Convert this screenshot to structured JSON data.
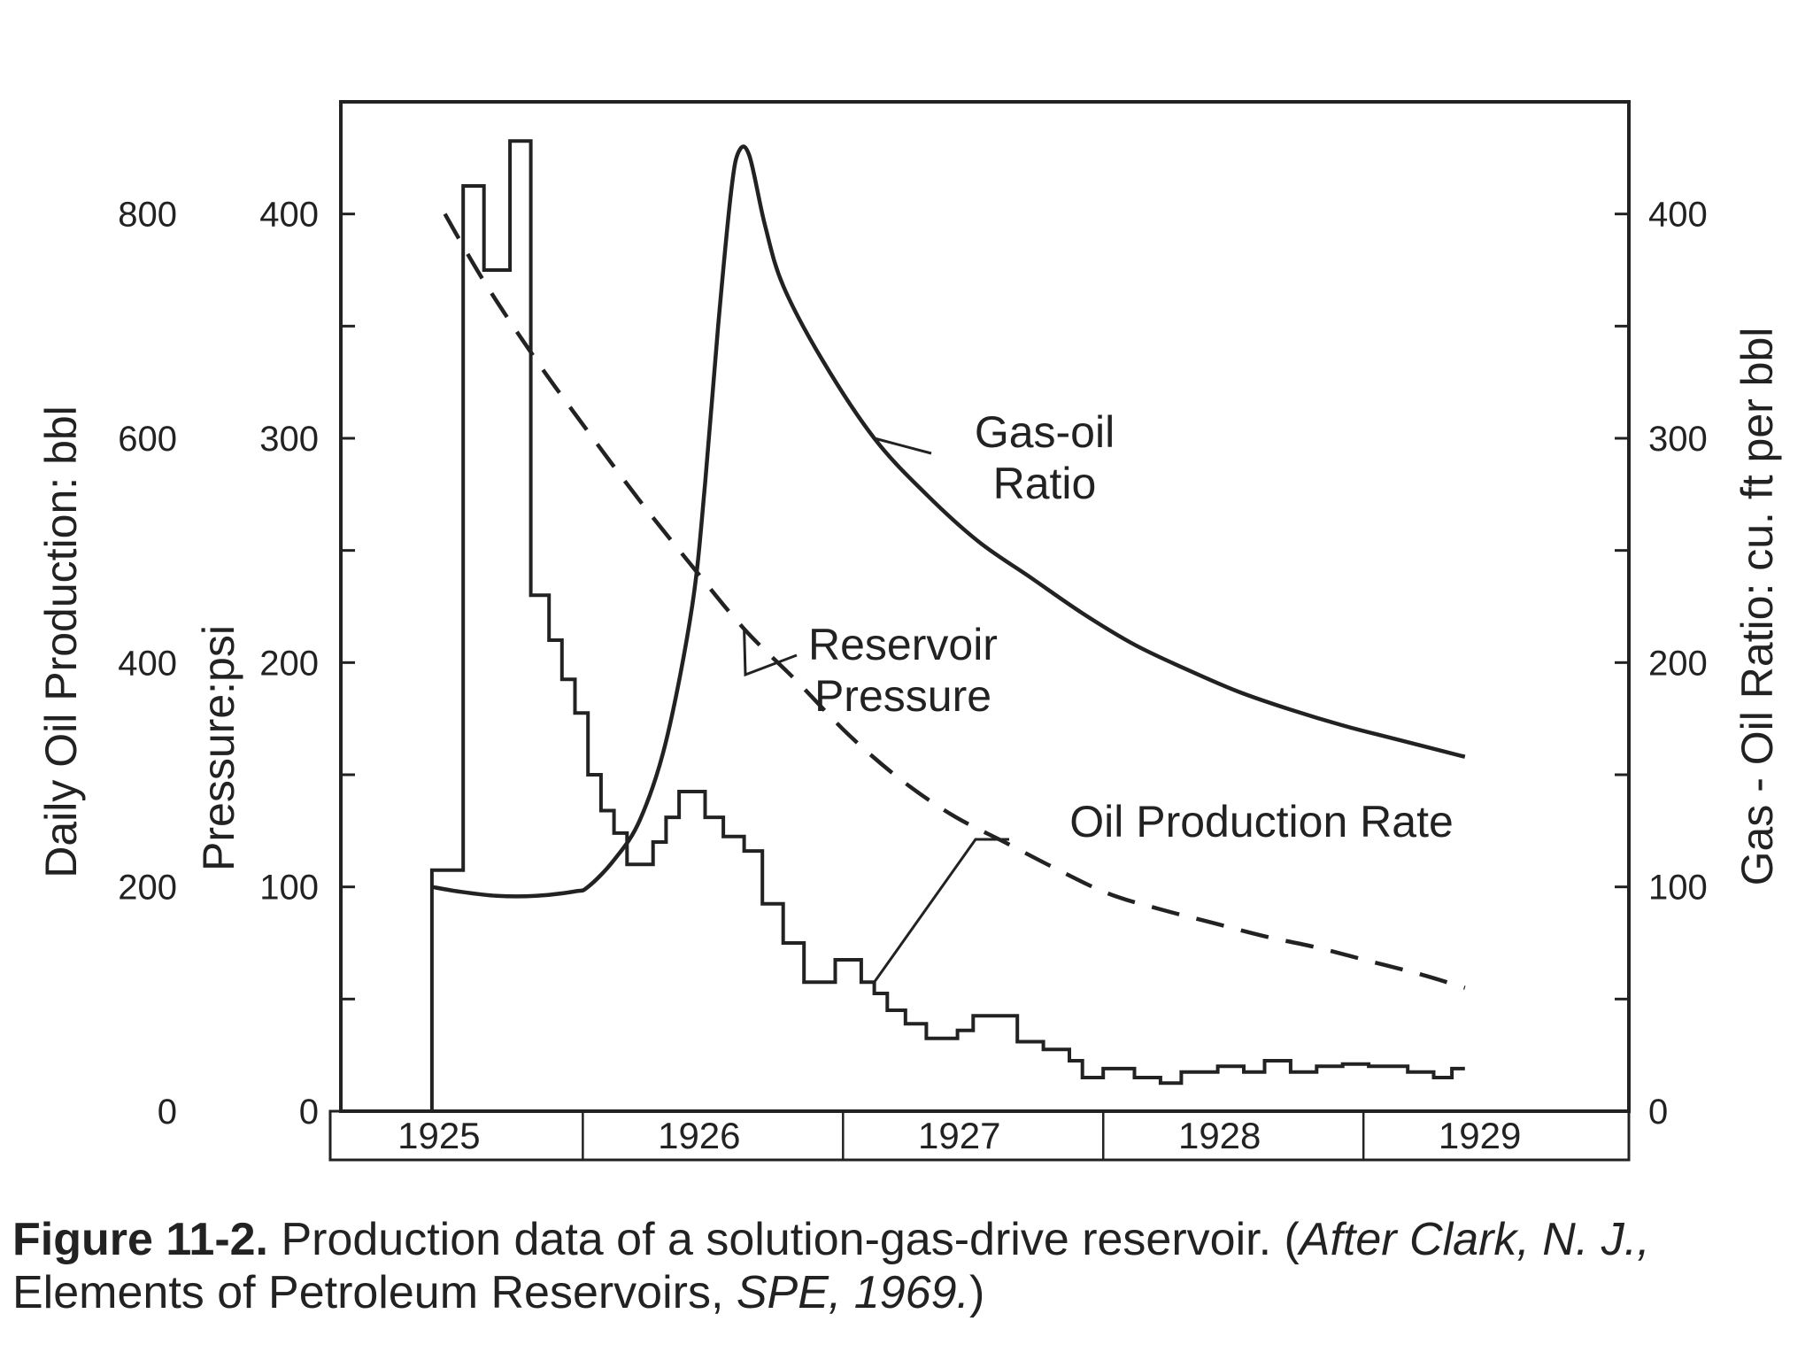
{
  "chart_data": {
    "type": "line",
    "x_unit": "year",
    "xlim": [
      1924.65,
      1929.6
    ],
    "x_tick_labels": [
      "1925",
      "1926",
      "1927",
      "1928",
      "1929"
    ],
    "axes": {
      "daily_oil": {
        "label": "Daily Oil Production: bbl",
        "ylim": [
          0,
          900
        ],
        "ticks": [
          0,
          200,
          400,
          600,
          800
        ],
        "tick_labels": [
          "0",
          "200",
          "400",
          "600",
          "800"
        ]
      },
      "pressure": {
        "label": "Pressure:psi",
        "ylim": [
          0,
          450
        ],
        "ticks": [
          0,
          100,
          200,
          300,
          400
        ],
        "tick_labels": [
          "0",
          "100",
          "200",
          "300",
          "400"
        ]
      },
      "gor": {
        "label": "Gas - Oil Ratio: cu. ft per bbl",
        "ylim": [
          0,
          450
        ],
        "ticks": [
          0,
          100,
          200,
          300,
          400
        ],
        "tick_labels": [
          "0",
          "100",
          "200",
          "300",
          "400"
        ]
      }
    },
    "series": [
      {
        "name": "Oil Production Rate",
        "axis": "daily_oil",
        "style": "step",
        "points": [
          [
            1925.0,
            0
          ],
          [
            1925.0,
            215
          ],
          [
            1925.12,
            215
          ],
          [
            1925.12,
            825
          ],
          [
            1925.2,
            825
          ],
          [
            1925.2,
            750
          ],
          [
            1925.3,
            750
          ],
          [
            1925.3,
            865
          ],
          [
            1925.38,
            865
          ],
          [
            1925.38,
            460
          ],
          [
            1925.45,
            460
          ],
          [
            1925.45,
            420
          ],
          [
            1925.5,
            420
          ],
          [
            1925.5,
            385
          ],
          [
            1925.55,
            385
          ],
          [
            1925.55,
            355
          ],
          [
            1925.6,
            355
          ],
          [
            1925.6,
            300
          ],
          [
            1925.65,
            300
          ],
          [
            1925.65,
            268
          ],
          [
            1925.7,
            268
          ],
          [
            1925.7,
            248
          ],
          [
            1925.75,
            248
          ],
          [
            1925.75,
            220
          ],
          [
            1925.85,
            220
          ],
          [
            1925.85,
            240
          ],
          [
            1925.9,
            240
          ],
          [
            1925.9,
            262
          ],
          [
            1925.95,
            262
          ],
          [
            1925.95,
            285
          ],
          [
            1926.05,
            285
          ],
          [
            1926.05,
            262
          ],
          [
            1926.12,
            262
          ],
          [
            1926.12,
            245
          ],
          [
            1926.2,
            245
          ],
          [
            1926.2,
            232
          ],
          [
            1926.27,
            232
          ],
          [
            1926.27,
            185
          ],
          [
            1926.35,
            185
          ],
          [
            1926.35,
            150
          ],
          [
            1926.43,
            150
          ],
          [
            1926.43,
            115
          ],
          [
            1926.55,
            115
          ],
          [
            1926.55,
            135
          ],
          [
            1926.65,
            135
          ],
          [
            1926.65,
            115
          ],
          [
            1926.7,
            115
          ],
          [
            1926.7,
            105
          ],
          [
            1926.75,
            105
          ],
          [
            1926.75,
            90
          ],
          [
            1926.82,
            90
          ],
          [
            1926.82,
            78
          ],
          [
            1926.9,
            78
          ],
          [
            1926.9,
            65
          ],
          [
            1927.02,
            65
          ],
          [
            1927.02,
            72
          ],
          [
            1927.08,
            72
          ],
          [
            1927.08,
            85
          ],
          [
            1927.25,
            85
          ],
          [
            1927.25,
            62
          ],
          [
            1927.35,
            62
          ],
          [
            1927.35,
            55
          ],
          [
            1927.45,
            55
          ],
          [
            1927.45,
            45
          ],
          [
            1927.5,
            45
          ],
          [
            1927.5,
            30
          ],
          [
            1927.58,
            30
          ],
          [
            1927.58,
            38
          ],
          [
            1927.7,
            38
          ],
          [
            1927.7,
            30
          ],
          [
            1927.8,
            30
          ],
          [
            1927.8,
            25
          ],
          [
            1927.88,
            25
          ],
          [
            1927.88,
            35
          ],
          [
            1928.02,
            35
          ],
          [
            1928.02,
            40
          ],
          [
            1928.12,
            40
          ],
          [
            1928.12,
            35
          ],
          [
            1928.2,
            35
          ],
          [
            1928.2,
            45
          ],
          [
            1928.3,
            45
          ],
          [
            1928.3,
            35
          ],
          [
            1928.4,
            35
          ],
          [
            1928.4,
            40
          ],
          [
            1928.5,
            40
          ],
          [
            1928.5,
            42
          ],
          [
            1928.6,
            42
          ],
          [
            1928.6,
            40
          ],
          [
            1928.75,
            40
          ],
          [
            1928.75,
            35
          ],
          [
            1928.85,
            35
          ],
          [
            1928.85,
            30
          ],
          [
            1928.92,
            30
          ],
          [
            1928.92,
            38
          ],
          [
            1928.97,
            38
          ]
        ]
      },
      {
        "name": "Reservoir Pressure",
        "axis": "pressure",
        "style": "dashed",
        "points": [
          [
            1925.05,
            400
          ],
          [
            1925.2,
            370
          ],
          [
            1925.4,
            335
          ],
          [
            1925.6,
            303
          ],
          [
            1925.8,
            272
          ],
          [
            1926.0,
            243
          ],
          [
            1926.2,
            215
          ],
          [
            1926.4,
            192
          ],
          [
            1926.6,
            168
          ],
          [
            1926.8,
            148
          ],
          [
            1927.0,
            132
          ],
          [
            1927.2,
            120
          ],
          [
            1927.4,
            108
          ],
          [
            1927.6,
            97
          ],
          [
            1927.8,
            90
          ],
          [
            1928.0,
            84
          ],
          [
            1928.2,
            78
          ],
          [
            1928.4,
            73
          ],
          [
            1928.6,
            67
          ],
          [
            1928.8,
            61
          ],
          [
            1928.97,
            55
          ]
        ]
      },
      {
        "name": "Gas-oil Ratio",
        "axis": "gor",
        "style": "solid",
        "points": [
          [
            1925.0,
            100
          ],
          [
            1925.1,
            98
          ],
          [
            1925.25,
            96
          ],
          [
            1925.4,
            96
          ],
          [
            1925.55,
            98
          ],
          [
            1925.6,
            100
          ],
          [
            1925.7,
            112
          ],
          [
            1925.8,
            130
          ],
          [
            1925.9,
            165
          ],
          [
            1926.0,
            225
          ],
          [
            1926.05,
            280
          ],
          [
            1926.1,
            350
          ],
          [
            1926.15,
            410
          ],
          [
            1926.18,
            428
          ],
          [
            1926.22,
            426
          ],
          [
            1926.28,
            395
          ],
          [
            1926.35,
            368
          ],
          [
            1926.5,
            335
          ],
          [
            1926.7,
            300
          ],
          [
            1926.9,
            275
          ],
          [
            1927.1,
            254
          ],
          [
            1927.3,
            238
          ],
          [
            1927.5,
            222
          ],
          [
            1927.7,
            208
          ],
          [
            1927.9,
            197
          ],
          [
            1928.1,
            187
          ],
          [
            1928.3,
            179
          ],
          [
            1928.5,
            172
          ],
          [
            1928.7,
            166
          ],
          [
            1928.97,
            158
          ]
        ]
      }
    ],
    "annotations": [
      {
        "series": "Gas-oil Ratio",
        "lines": [
          "Gas-oil",
          "Ratio"
        ]
      },
      {
        "series": "Reservoir Pressure",
        "lines": [
          "Reservoir",
          "Pressure"
        ]
      },
      {
        "series": "Oil Production Rate",
        "lines": [
          "Oil Production Rate"
        ]
      }
    ]
  },
  "caption": {
    "figure_number": "Figure 11-2.",
    "text": " Production data of a solution-gas-drive reservoir. (",
    "source_italic": "After Clark, N. J.,",
    "line2_prefix": " Elements of Petroleum Reservoirs, ",
    "line2_italic": "SPE, 1969.",
    "line2_suffix": ")"
  }
}
